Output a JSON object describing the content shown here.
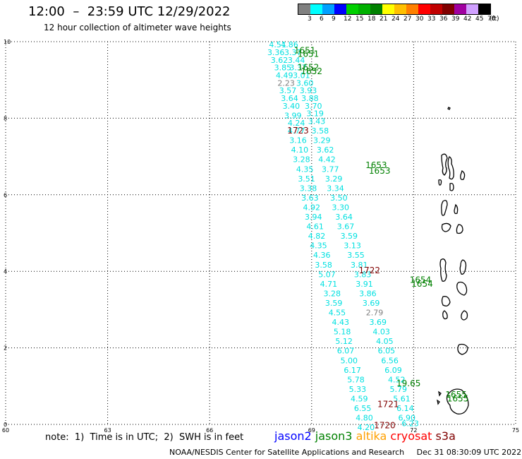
{
  "header": {
    "title": "12:00  –  23:59 UTC 12/29/2022",
    "subtitle": "12 hour collection of altimeter wave heights"
  },
  "color_scale": {
    "unit": "(ft)",
    "bins": [
      {
        "label": "3",
        "color": "#808080"
      },
      {
        "label": "6",
        "color": "#00ffff"
      },
      {
        "label": "9",
        "color": "#00a0ff"
      },
      {
        "label": "12",
        "color": "#0000ff"
      },
      {
        "label": "15",
        "color": "#00d000"
      },
      {
        "label": "18",
        "color": "#00b000"
      },
      {
        "label": "21",
        "color": "#008000"
      },
      {
        "label": "24",
        "color": "#ffff00"
      },
      {
        "label": "27",
        "color": "#ffc000"
      },
      {
        "label": "30",
        "color": "#ff8000"
      },
      {
        "label": "33",
        "color": "#ff0000"
      },
      {
        "label": "36",
        "color": "#c00000"
      },
      {
        "label": "39",
        "color": "#800000"
      },
      {
        "label": "42",
        "color": "#a000a0"
      },
      {
        "label": "45",
        "color": "#d0a0ff"
      },
      {
        "label": "70",
        "color": "#000000"
      }
    ]
  },
  "axes": {
    "x_ticks": [
      "60",
      "63",
      "66",
      "69",
      "72",
      "75"
    ],
    "y_ticks": [
      "0",
      "2",
      "4",
      "6",
      "8",
      "10"
    ],
    "lon_range": [
      60,
      75
    ],
    "lat_range": [
      0,
      10
    ],
    "grid": "dotted"
  },
  "tracks": [
    {
      "name": "west",
      "labels": [
        {
          "lon": 68.0,
          "lat": 9.85,
          "t": "4.51"
        },
        {
          "lon": 67.95,
          "lat": 9.65,
          "t": "3.36"
        },
        {
          "lon": 68.05,
          "lat": 9.45,
          "t": "3.62"
        },
        {
          "lon": 68.15,
          "lat": 9.25,
          "t": "3.85"
        },
        {
          "lon": 68.2,
          "lat": 9.05,
          "t": "4.49"
        },
        {
          "lon": 68.25,
          "lat": 8.85,
          "t": "2.23",
          "c": "#808080"
        },
        {
          "lon": 68.3,
          "lat": 8.65,
          "t": "3.57"
        },
        {
          "lon": 68.35,
          "lat": 8.45,
          "t": "3.64"
        },
        {
          "lon": 68.4,
          "lat": 8.25,
          "t": "3.40"
        },
        {
          "lon": 68.45,
          "lat": 8.0,
          "t": "3.99"
        },
        {
          "lon": 68.55,
          "lat": 7.8,
          "t": "4.24"
        },
        {
          "lon": 68.55,
          "lat": 7.6,
          "t": "4.77"
        },
        {
          "lon": 68.6,
          "lat": 7.35,
          "t": "3.16"
        },
        {
          "lon": 68.65,
          "lat": 7.1,
          "t": "4.10"
        },
        {
          "lon": 68.7,
          "lat": 6.85,
          "t": "3.28"
        },
        {
          "lon": 68.8,
          "lat": 6.6,
          "t": "4.35"
        },
        {
          "lon": 68.85,
          "lat": 6.35,
          "t": "3.51"
        },
        {
          "lon": 68.9,
          "lat": 6.1,
          "t": "3.38"
        },
        {
          "lon": 68.95,
          "lat": 5.85,
          "t": "3.63"
        },
        {
          "lon": 69.0,
          "lat": 5.6,
          "t": "4.92"
        },
        {
          "lon": 69.05,
          "lat": 5.35,
          "t": "3.94"
        },
        {
          "lon": 69.1,
          "lat": 5.1,
          "t": "4.61"
        },
        {
          "lon": 69.15,
          "lat": 4.85,
          "t": "4.82"
        },
        {
          "lon": 69.2,
          "lat": 4.6,
          "t": "4.35"
        },
        {
          "lon": 69.3,
          "lat": 4.35,
          "t": "4.36"
        },
        {
          "lon": 69.35,
          "lat": 4.1,
          "t": "3.58"
        },
        {
          "lon": 69.45,
          "lat": 3.85,
          "t": "5.07"
        },
        {
          "lon": 69.5,
          "lat": 3.6,
          "t": "4.71"
        },
        {
          "lon": 69.6,
          "lat": 3.35,
          "t": "3.28"
        },
        {
          "lon": 69.65,
          "lat": 3.1,
          "t": "3.59"
        },
        {
          "lon": 69.75,
          "lat": 2.85,
          "t": "4.55"
        },
        {
          "lon": 69.85,
          "lat": 2.6,
          "t": "4.43"
        },
        {
          "lon": 69.9,
          "lat": 2.35,
          "t": "5.18"
        },
        {
          "lon": 69.95,
          "lat": 2.1,
          "t": "5.12"
        },
        {
          "lon": 70.0,
          "lat": 1.85,
          "t": "6.07"
        },
        {
          "lon": 70.1,
          "lat": 1.6,
          "t": "5.00"
        },
        {
          "lon": 70.2,
          "lat": 1.35,
          "t": "6.17"
        },
        {
          "lon": 70.3,
          "lat": 1.1,
          "t": "5.78"
        },
        {
          "lon": 70.35,
          "lat": 0.85,
          "t": "5.33"
        },
        {
          "lon": 70.4,
          "lat": 0.6,
          "t": "4.59"
        },
        {
          "lon": 70.5,
          "lat": 0.35,
          "t": "6.55"
        },
        {
          "lon": 70.55,
          "lat": 0.1,
          "t": "4.80"
        },
        {
          "lon": 70.6,
          "lat": -0.15,
          "t": "4.20"
        }
      ]
    },
    {
      "name": "east",
      "labels": [
        {
          "lon": 68.35,
          "lat": 9.85,
          "t": "4.86"
        },
        {
          "lon": 68.45,
          "lat": 9.65,
          "t": "3.37"
        },
        {
          "lon": 68.55,
          "lat": 9.45,
          "t": "3.44"
        },
        {
          "lon": 68.6,
          "lat": 9.25,
          "t": "3.37"
        },
        {
          "lon": 68.7,
          "lat": 9.05,
          "t": "3.01"
        },
        {
          "lon": 68.8,
          "lat": 8.85,
          "t": "3.60"
        },
        {
          "lon": 68.9,
          "lat": 8.65,
          "t": "3.93"
        },
        {
          "lon": 68.95,
          "lat": 8.45,
          "t": "3.88"
        },
        {
          "lon": 69.05,
          "lat": 8.25,
          "t": "3.70"
        },
        {
          "lon": 69.1,
          "lat": 8.05,
          "t": "3.19"
        },
        {
          "lon": 69.15,
          "lat": 7.85,
          "t": "3.43"
        },
        {
          "lon": 69.25,
          "lat": 7.6,
          "t": "3.58"
        },
        {
          "lon": 69.3,
          "lat": 7.35,
          "t": "3.29"
        },
        {
          "lon": 69.4,
          "lat": 7.1,
          "t": "3.62"
        },
        {
          "lon": 69.45,
          "lat": 6.85,
          "t": "4.42"
        },
        {
          "lon": 69.55,
          "lat": 6.6,
          "t": "3.77"
        },
        {
          "lon": 69.65,
          "lat": 6.35,
          "t": "3.29"
        },
        {
          "lon": 69.7,
          "lat": 6.1,
          "t": "3.34"
        },
        {
          "lon": 69.8,
          "lat": 5.85,
          "t": "3.50"
        },
        {
          "lon": 69.85,
          "lat": 5.6,
          "t": "3.30"
        },
        {
          "lon": 69.95,
          "lat": 5.35,
          "t": "3.64"
        },
        {
          "lon": 70.0,
          "lat": 5.1,
          "t": "3.67"
        },
        {
          "lon": 70.1,
          "lat": 4.85,
          "t": "3.59"
        },
        {
          "lon": 70.2,
          "lat": 4.6,
          "t": "3.13"
        },
        {
          "lon": 70.3,
          "lat": 4.35,
          "t": "3.55"
        },
        {
          "lon": 70.4,
          "lat": 4.1,
          "t": "3.81"
        },
        {
          "lon": 70.5,
          "lat": 3.85,
          "t": "3.83"
        },
        {
          "lon": 70.55,
          "lat": 3.6,
          "t": "3.91"
        },
        {
          "lon": 70.65,
          "lat": 3.35,
          "t": "3.86"
        },
        {
          "lon": 70.75,
          "lat": 3.1,
          "t": "3.69"
        },
        {
          "lon": 70.85,
          "lat": 2.85,
          "t": "2.79",
          "c": "#808080"
        },
        {
          "lon": 70.95,
          "lat": 2.6,
          "t": "3.69"
        },
        {
          "lon": 71.05,
          "lat": 2.35,
          "t": "4.03"
        },
        {
          "lon": 71.15,
          "lat": 2.1,
          "t": "4.05"
        },
        {
          "lon": 71.2,
          "lat": 1.85,
          "t": "6.05"
        },
        {
          "lon": 71.3,
          "lat": 1.6,
          "t": "6.56"
        },
        {
          "lon": 71.4,
          "lat": 1.35,
          "t": "6.09"
        },
        {
          "lon": 71.5,
          "lat": 1.1,
          "t": "4.52"
        },
        {
          "lon": 71.55,
          "lat": 0.85,
          "t": "5.79"
        },
        {
          "lon": 71.65,
          "lat": 0.6,
          "t": "5.61"
        },
        {
          "lon": 71.75,
          "lat": 0.35,
          "t": "6.14"
        },
        {
          "lon": 71.8,
          "lat": 0.1,
          "t": "6.90"
        },
        {
          "lon": 71.9,
          "lat": -0.05,
          "t": "6.23"
        }
      ]
    }
  ],
  "pass_labels": [
    {
      "lon": 68.8,
      "lat": 9.7,
      "t": "1651",
      "c": "#008000"
    },
    {
      "lon": 68.9,
      "lat": 9.6,
      "t": "1651",
      "c": "#008000"
    },
    {
      "lon": 68.9,
      "lat": 9.25,
      "t": "1652",
      "c": "#008000"
    },
    {
      "lon": 69.0,
      "lat": 9.15,
      "t": "1652",
      "c": "#008000"
    },
    {
      "lon": 68.6,
      "lat": 7.6,
      "t": "1723",
      "c": "#800000"
    },
    {
      "lon": 70.9,
      "lat": 6.7,
      "t": "1653",
      "c": "#008000"
    },
    {
      "lon": 71.0,
      "lat": 6.55,
      "t": "1653",
      "c": "#008000"
    },
    {
      "lon": 70.7,
      "lat": 3.95,
      "t": "1722",
      "c": "#800000"
    },
    {
      "lon": 72.2,
      "lat": 3.7,
      "t": "1654",
      "c": "#008000"
    },
    {
      "lon": 72.25,
      "lat": 3.6,
      "t": "1654",
      "c": "#008000"
    },
    {
      "lon": 71.85,
      "lat": 1.0,
      "t": "19.65",
      "c": "#008000"
    },
    {
      "lon": 73.25,
      "lat": 0.7,
      "t": "1655",
      "c": "#008000"
    },
    {
      "lon": 73.3,
      "lat": 0.6,
      "t": "1655",
      "c": "#008000"
    },
    {
      "lon": 71.25,
      "lat": 0.45,
      "t": "1721",
      "c": "#800000"
    },
    {
      "lon": 71.15,
      "lat": -0.1,
      "t": "1720",
      "c": "#800000"
    }
  ],
  "footer": {
    "note": "note:  1)  Time is in UTC;  2)  SWH is in feet",
    "missions": [
      {
        "name": "jason2",
        "color": "#0000ff"
      },
      {
        "name": "jason3",
        "color": "#008000"
      },
      {
        "name": "altika",
        "color": "#ffa000"
      },
      {
        "name": "cryosat",
        "color": "#ff0000"
      },
      {
        "name": "s3a",
        "color": "#800000"
      }
    ],
    "credit": "NOAA/NESDIS Center for Satellite Applications and Research     Dec 31 08:30:09 UTC 2022"
  }
}
